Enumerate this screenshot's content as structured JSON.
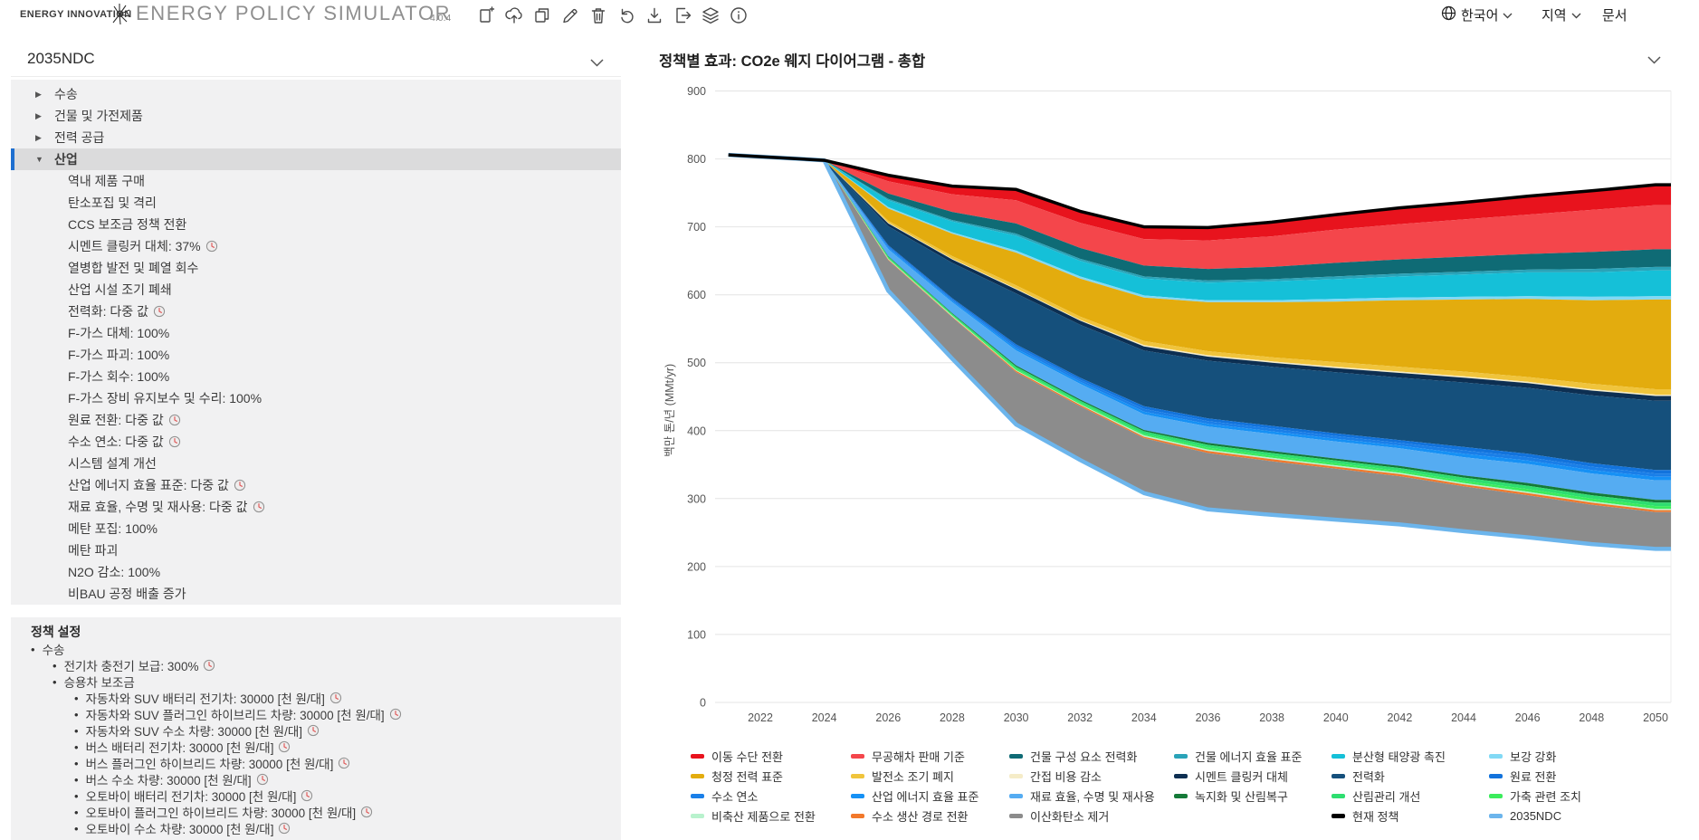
{
  "header": {
    "logo_text": "ENERGY INNOVATION",
    "app_title": "ENERGY POLICY SIMULATOR",
    "version": "4.0.4",
    "toolbar_icons": [
      "new-scenario",
      "upload",
      "duplicate",
      "edit",
      "delete",
      "undo",
      "download",
      "export",
      "layers",
      "info"
    ],
    "language_label": "한국어",
    "region_label": "지역",
    "docs_label": "문서"
  },
  "sidebar": {
    "scenario_name": "2035NDC",
    "tree": [
      {
        "label": "수송",
        "level": 0,
        "state": "collapsed"
      },
      {
        "label": "건물 및 가전제품",
        "level": 0,
        "state": "collapsed"
      },
      {
        "label": "전력 공급",
        "level": 0,
        "state": "collapsed"
      },
      {
        "label": "산업",
        "level": 0,
        "state": "expanded",
        "selected": true
      },
      {
        "label": "역내 제품 구매",
        "level": 1
      },
      {
        "label": "탄소포집 및 격리",
        "level": 1
      },
      {
        "label": "CCS 보조금 정책 전환",
        "level": 1
      },
      {
        "label": "시멘트 클링커 대체: 37%",
        "level": 1,
        "clock": true
      },
      {
        "label": "열병합 발전 및 폐열 회수",
        "level": 1
      },
      {
        "label": "산업 시설 조기 폐쇄",
        "level": 1
      },
      {
        "label": "전력화: 다중 값",
        "level": 1,
        "clock": true
      },
      {
        "label": "F-가스 대체: 100%",
        "level": 1
      },
      {
        "label": "F-가스 파괴: 100%",
        "level": 1
      },
      {
        "label": "F-가스 회수: 100%",
        "level": 1
      },
      {
        "label": "F-가스 장비 유지보수 및 수리: 100%",
        "level": 1
      },
      {
        "label": "원료 전환: 다중 값",
        "level": 1,
        "clock": true
      },
      {
        "label": "수소 연소: 다중 값",
        "level": 1,
        "clock": true
      },
      {
        "label": "시스템 설계 개선",
        "level": 1
      },
      {
        "label": "산업 에너지 효율 표준: 다중 값",
        "level": 1,
        "clock": true
      },
      {
        "label": "재료 효율, 수명 및 재사용: 다중 값",
        "level": 1,
        "clock": true
      },
      {
        "label": "메탄 포집: 100%",
        "level": 1
      },
      {
        "label": "메탄 파괴",
        "level": 1
      },
      {
        "label": "N2O 감소: 100%",
        "level": 1
      },
      {
        "label": "비BAU 공정 배출 증가",
        "level": 1
      }
    ],
    "policy_settings": {
      "title": "정책 설정",
      "items": [
        {
          "label": "수송",
          "level": 0
        },
        {
          "label": "전기차 충전기 보급: 300%",
          "level": 1,
          "clock": true
        },
        {
          "label": "승용차 보조금",
          "level": 1
        },
        {
          "label": "자동차와 SUV 배터리 전기차: 30000 [천 원/대]",
          "level": 2,
          "clock": true
        },
        {
          "label": "자동차와 SUV 플러그인 하이브리드 차량: 30000 [천 원/대]",
          "level": 2,
          "clock": true
        },
        {
          "label": "자동차와 SUV 수소 차량: 30000 [천 원/대]",
          "level": 2,
          "clock": true
        },
        {
          "label": "버스 배터리 전기차: 30000 [천 원/대]",
          "level": 2,
          "clock": true
        },
        {
          "label": "버스 플러그인 하이브리드 차량: 30000 [천 원/대]",
          "level": 2,
          "clock": true
        },
        {
          "label": "버스 수소 차량: 30000 [천 원/대]",
          "level": 2,
          "clock": true
        },
        {
          "label": "오토바이 배터리 전기차: 30000 [천 원/대]",
          "level": 2,
          "clock": true
        },
        {
          "label": "오토바이 플러그인 하이브리드 차량: 30000 [천 원/대]",
          "level": 2,
          "clock": true
        },
        {
          "label": "오토바이 수소 차량: 30000 [천 원/대]",
          "level": 2,
          "clock": true
        }
      ]
    }
  },
  "chart_header": {
    "title": "정책별 효과: CO2e 웨지 다이어그램 - 총합"
  },
  "chart_data": {
    "type": "area",
    "title": "정책별 효과: CO2e 웨지 다이어그램 - 총합",
    "ylabel": "백만 톤/년 (MMt/yr)",
    "ylim": [
      0,
      900
    ],
    "yticks": [
      0,
      100,
      200,
      300,
      400,
      500,
      600,
      700,
      800,
      900
    ],
    "xticks": [
      2022,
      2024,
      2026,
      2028,
      2030,
      2032,
      2034,
      2036,
      2038,
      2040,
      2042,
      2044,
      2046,
      2048,
      2050
    ],
    "x": [
      2021,
      2024,
      2026,
      2028,
      2030,
      2032,
      2034,
      2036,
      2038,
      2040,
      2042,
      2044,
      2046,
      2048,
      2050
    ],
    "top_line": {
      "name": "현재 정책",
      "color": "#000000",
      "values": [
        806,
        798,
        776,
        760,
        755,
        723,
        700,
        699,
        707,
        718,
        728,
        736,
        745,
        753,
        762
      ]
    },
    "bottom_line": {
      "name": "2035NDC",
      "color": "#6cb5ec",
      "end_value": 226
    },
    "series": [
      {
        "name": "이동 수단 전환",
        "color": "#e8131d",
        "values": [
          0,
          0,
          9,
          12,
          16,
          17,
          18,
          19,
          21,
          22,
          24,
          25,
          27,
          28,
          30
        ]
      },
      {
        "name": "무공해차 판매 기준",
        "color": "#f4464b",
        "values": [
          0,
          0,
          18,
          26,
          34,
          37,
          39,
          42,
          45,
          49,
          52,
          55,
          58,
          62,
          65
        ]
      },
      {
        "name": "건물 구성 요소 전력화",
        "color": "#0f6b75",
        "values": [
          0,
          0,
          8,
          12,
          15,
          16,
          16,
          17,
          18,
          20,
          21,
          22,
          23,
          25,
          26
        ]
      },
      {
        "name": "건물 에너지 효율 표준",
        "color": "#2aa3b8",
        "values": [
          0,
          0,
          2,
          2,
          3,
          3,
          3,
          3,
          3,
          4,
          4,
          4,
          4,
          5,
          5
        ]
      },
      {
        "name": "분산형 태양광 촉진",
        "color": "#15c0d8",
        "values": [
          0,
          0,
          10,
          16,
          22,
          23,
          25,
          26,
          28,
          29,
          31,
          33,
          35,
          36,
          38
        ]
      },
      {
        "name": "보강 강화",
        "color": "#82d9f5",
        "values": [
          0,
          0,
          2,
          2,
          3,
          3,
          3,
          3,
          3,
          4,
          4,
          4,
          4,
          5,
          5
        ]
      },
      {
        "name": "청정 전력 표준",
        "color": "#e3ac0e",
        "values": [
          0,
          0,
          18,
          33,
          48,
          56,
          64,
          72,
          81,
          89,
          98,
          106,
          115,
          123,
          132
        ]
      },
      {
        "name": "발전소 조기 폐지",
        "color": "#f0c43c",
        "values": [
          0,
          0,
          3,
          4,
          5,
          5,
          6,
          6,
          6,
          7,
          7,
          7,
          7,
          8,
          8
        ]
      },
      {
        "name": "간접 비용 감소",
        "color": "#f5ecc8",
        "values": [
          0,
          0,
          1,
          1,
          1,
          1,
          2,
          2,
          2,
          2,
          2,
          2,
          2,
          2,
          2
        ]
      },
      {
        "name": "시멘트 클링커 대체",
        "color": "#0d2f52",
        "values": [
          0,
          0,
          4,
          5,
          6,
          6,
          6,
          6,
          6,
          6,
          7,
          7,
          7,
          7,
          7
        ]
      },
      {
        "name": "전력화",
        "color": "#15507c",
        "values": [
          0,
          0,
          28,
          52,
          75,
          78,
          82,
          85,
          87,
          90,
          92,
          95,
          97,
          100,
          102
        ]
      },
      {
        "name": "원료 전환",
        "color": "#1273dc",
        "values": [
          0,
          0,
          2,
          2,
          3,
          3,
          4,
          4,
          4,
          4,
          4,
          5,
          5,
          5,
          5
        ]
      },
      {
        "name": "수소 연소",
        "color": "#1a7fe8",
        "values": [
          0,
          0,
          2,
          2,
          3,
          3,
          4,
          4,
          4,
          4,
          4,
          5,
          5,
          5,
          5
        ]
      },
      {
        "name": "산업 에너지 효율 표준",
        "color": "#1691f5",
        "values": [
          0,
          0,
          2,
          2,
          3,
          3,
          4,
          4,
          4,
          4,
          4,
          5,
          5,
          5,
          5
        ]
      },
      {
        "name": "재료 효율, 수명 및 재사용",
        "color": "#55acf2",
        "values": [
          0,
          0,
          10,
          16,
          22,
          23,
          23,
          24,
          25,
          25,
          26,
          27,
          28,
          28,
          29
        ]
      },
      {
        "name": "녹지화 및 산림복구",
        "color": "#157a38",
        "values": [
          0,
          0,
          1,
          1,
          2,
          2,
          2,
          3,
          3,
          3,
          3,
          3,
          4,
          4,
          4
        ]
      },
      {
        "name": "산림관리 개선",
        "color": "#2ede70",
        "values": [
          0,
          0,
          2,
          2,
          3,
          3,
          4,
          4,
          4,
          4,
          4,
          5,
          5,
          5,
          5
        ]
      },
      {
        "name": "가축 관련 조치",
        "color": "#3bec5c",
        "values": [
          0,
          0,
          1,
          1,
          2,
          2,
          2,
          3,
          3,
          3,
          3,
          3,
          4,
          4,
          4
        ]
      },
      {
        "name": "비축산 제품으로 전환",
        "color": "#b8f2cd",
        "values": [
          0,
          0,
          1,
          1,
          1,
          1,
          2,
          2,
          2,
          2,
          2,
          2,
          2,
          2,
          2
        ]
      },
      {
        "name": "수소 생산 경로 전환",
        "color": "#f2782b",
        "values": [
          0,
          0,
          1,
          1,
          2,
          2,
          2,
          3,
          3,
          3,
          3,
          3,
          3,
          3,
          3
        ]
      },
      {
        "name": "이산화탄소 제거",
        "color": "#8c8c8c",
        "values": [
          0,
          0,
          45,
          61,
          77,
          79,
          81,
          83,
          79,
          75,
          71,
          66,
          62,
          58,
          54
        ]
      }
    ]
  },
  "legend": {
    "columns": [
      [
        {
          "label": "이동 수단 전환",
          "color": "#e8131d"
        },
        {
          "label": "청정 전력 표준",
          "color": "#e3ac0e"
        },
        {
          "label": "수소 연소",
          "color": "#1a7fe8"
        },
        {
          "label": "비축산 제품으로 전환",
          "color": "#b8f2cd"
        }
      ],
      [
        {
          "label": "무공해차 판매 기준",
          "color": "#f4464b"
        },
        {
          "label": "발전소 조기 폐지",
          "color": "#f0c43c"
        },
        {
          "label": "산업 에너지 효율 표준",
          "color": "#1691f5"
        },
        {
          "label": "수소 생산 경로 전환",
          "color": "#f2782b"
        }
      ],
      [
        {
          "label": "건물 구성 요소 전력화",
          "color": "#0f6b75"
        },
        {
          "label": "간접 비용 감소",
          "color": "#f5ecc8"
        },
        {
          "label": "재료 효율, 수명 및 재사용",
          "color": "#55acf2"
        },
        {
          "label": "이산화탄소 제거",
          "color": "#8c8c8c"
        }
      ],
      [
        {
          "label": "건물 에너지 효율 표준",
          "color": "#2aa3b8"
        },
        {
          "label": "시멘트 클링커 대체",
          "color": "#0d2f52"
        },
        {
          "label": "녹지화 및 산림복구",
          "color": "#157a38"
        }
      ],
      [
        {
          "label": "분산형 태양광 촉진",
          "color": "#15c0d8"
        },
        {
          "label": "전력화",
          "color": "#15507c"
        },
        {
          "label": "산림관리 개선",
          "color": "#2ede70"
        },
        {
          "label": "현재 정책",
          "color": "#000000"
        }
      ],
      [
        {
          "label": "보강 강화",
          "color": "#82d9f5"
        },
        {
          "label": "원료 전환",
          "color": "#1273dc"
        },
        {
          "label": "가축 관련 조치",
          "color": "#3bec5c"
        },
        {
          "label": "2035NDC",
          "color": "#6cb5ec"
        }
      ]
    ]
  }
}
